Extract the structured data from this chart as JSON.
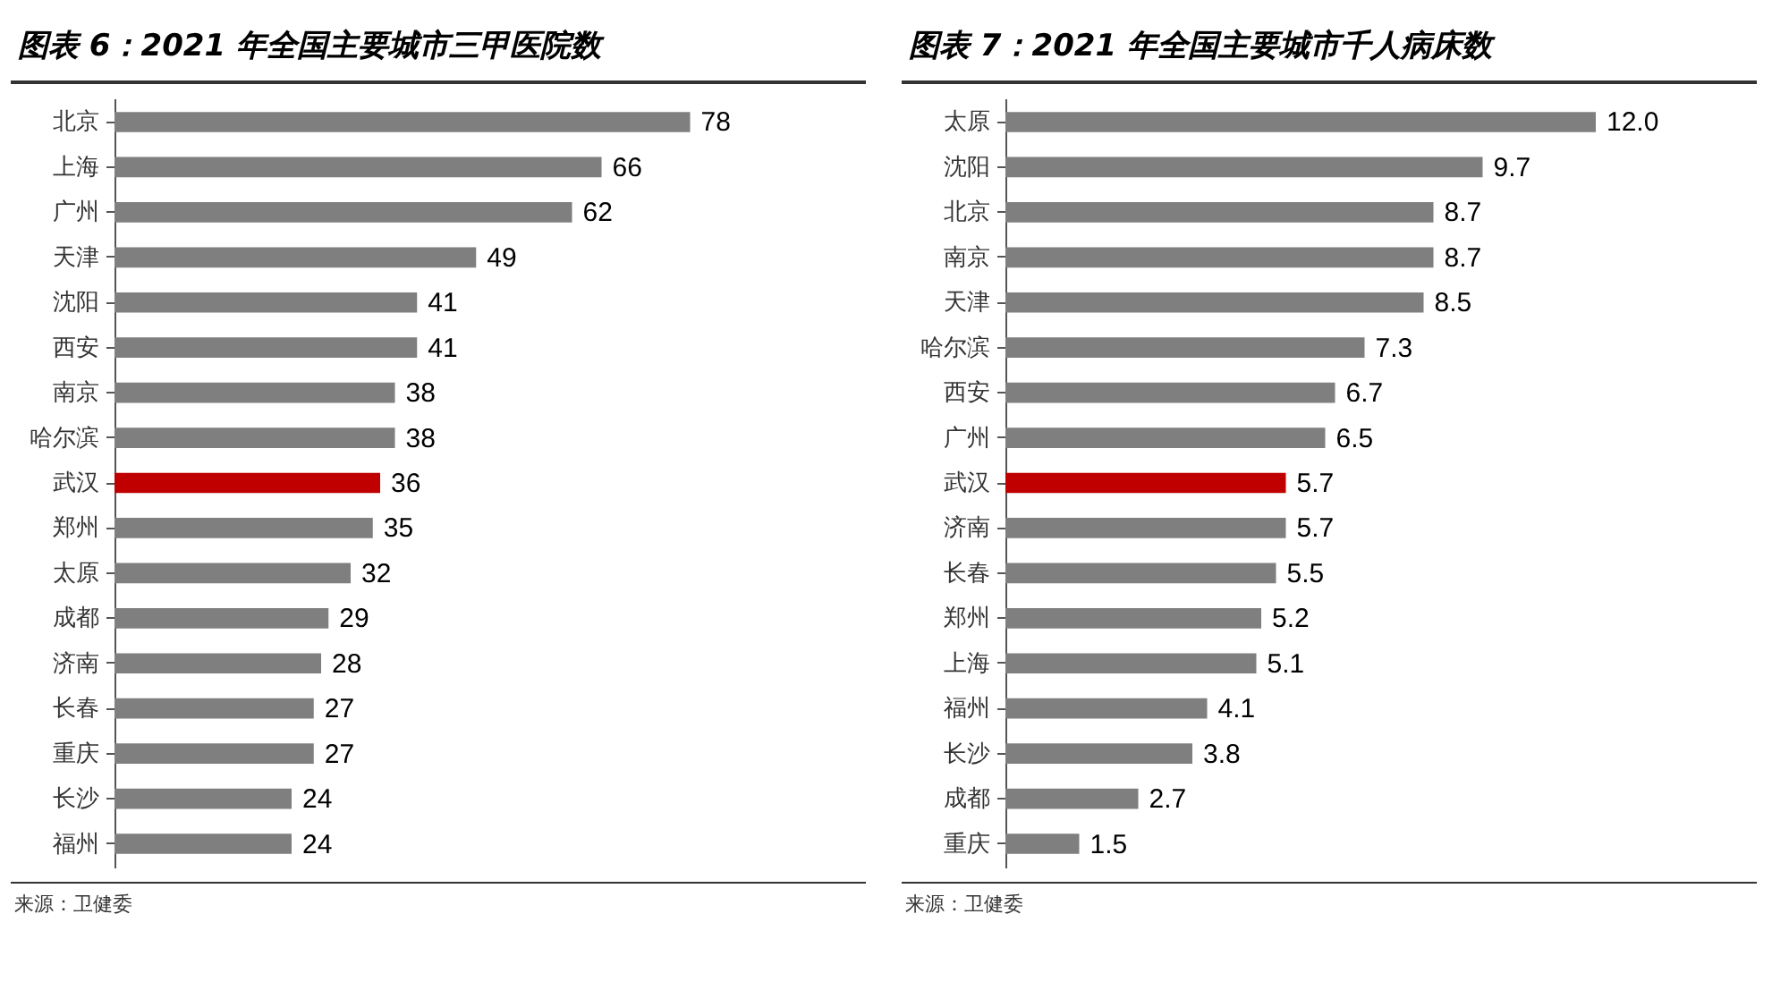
{
  "chart_data": [
    {
      "type": "bar",
      "orientation": "horizontal",
      "title": "图表 6：2021 年全国主要城市三甲医院数",
      "categories": [
        "北京",
        "上海",
        "广州",
        "天津",
        "沈阳",
        "西安",
        "南京",
        "哈尔滨",
        "武汉",
        "郑州",
        "太原",
        "成都",
        "济南",
        "长春",
        "重庆",
        "长沙",
        "福州"
      ],
      "values": [
        78,
        66,
        62,
        49,
        41,
        41,
        38,
        38,
        36,
        35,
        32,
        29,
        28,
        27,
        27,
        24,
        24
      ],
      "colors": [
        "#7f7f7f",
        "#7f7f7f",
        "#7f7f7f",
        "#7f7f7f",
        "#7f7f7f",
        "#7f7f7f",
        "#7f7f7f",
        "#7f7f7f",
        "#c00000",
        "#7f7f7f",
        "#7f7f7f",
        "#7f7f7f",
        "#7f7f7f",
        "#7f7f7f",
        "#7f7f7f",
        "#7f7f7f",
        "#7f7f7f"
      ],
      "data_labels": true,
      "tick_labels": "y",
      "annotations": [
        "来源：卫健委"
      ]
    },
    {
      "type": "bar",
      "orientation": "horizontal",
      "title": "图表 7：2021 年全国主要城市千人病床数",
      "categories": [
        "太原",
        "沈阳",
        "北京",
        "南京",
        "天津",
        "哈尔滨",
        "西安",
        "广州",
        "武汉",
        "济南",
        "长春",
        "郑州",
        "上海",
        "福州",
        "长沙",
        "成都",
        "重庆"
      ],
      "values": [
        12.0,
        9.7,
        8.7,
        8.7,
        8.5,
        7.3,
        6.7,
        6.5,
        5.7,
        5.7,
        5.5,
        5.2,
        5.1,
        4.1,
        3.8,
        2.7,
        1.5
      ],
      "value_labels": [
        "12.0",
        "9.7",
        "8.7",
        "8.7",
        "8.5",
        "7.3",
        "6.7",
        "6.5",
        "5.7",
        "5.7",
        "5.5",
        "5.2",
        "5.1",
        "4.1",
        "3.8",
        "2.7",
        "1.5"
      ],
      "colors": [
        "#7f7f7f",
        "#7f7f7f",
        "#7f7f7f",
        "#7f7f7f",
        "#7f7f7f",
        "#7f7f7f",
        "#7f7f7f",
        "#7f7f7f",
        "#c00000",
        "#7f7f7f",
        "#7f7f7f",
        "#7f7f7f",
        "#7f7f7f",
        "#7f7f7f",
        "#7f7f7f",
        "#7f7f7f",
        "#7f7f7f"
      ],
      "tick_labels": "y",
      "annotations": [
        "来源：卫健委"
      ]
    }
  ]
}
